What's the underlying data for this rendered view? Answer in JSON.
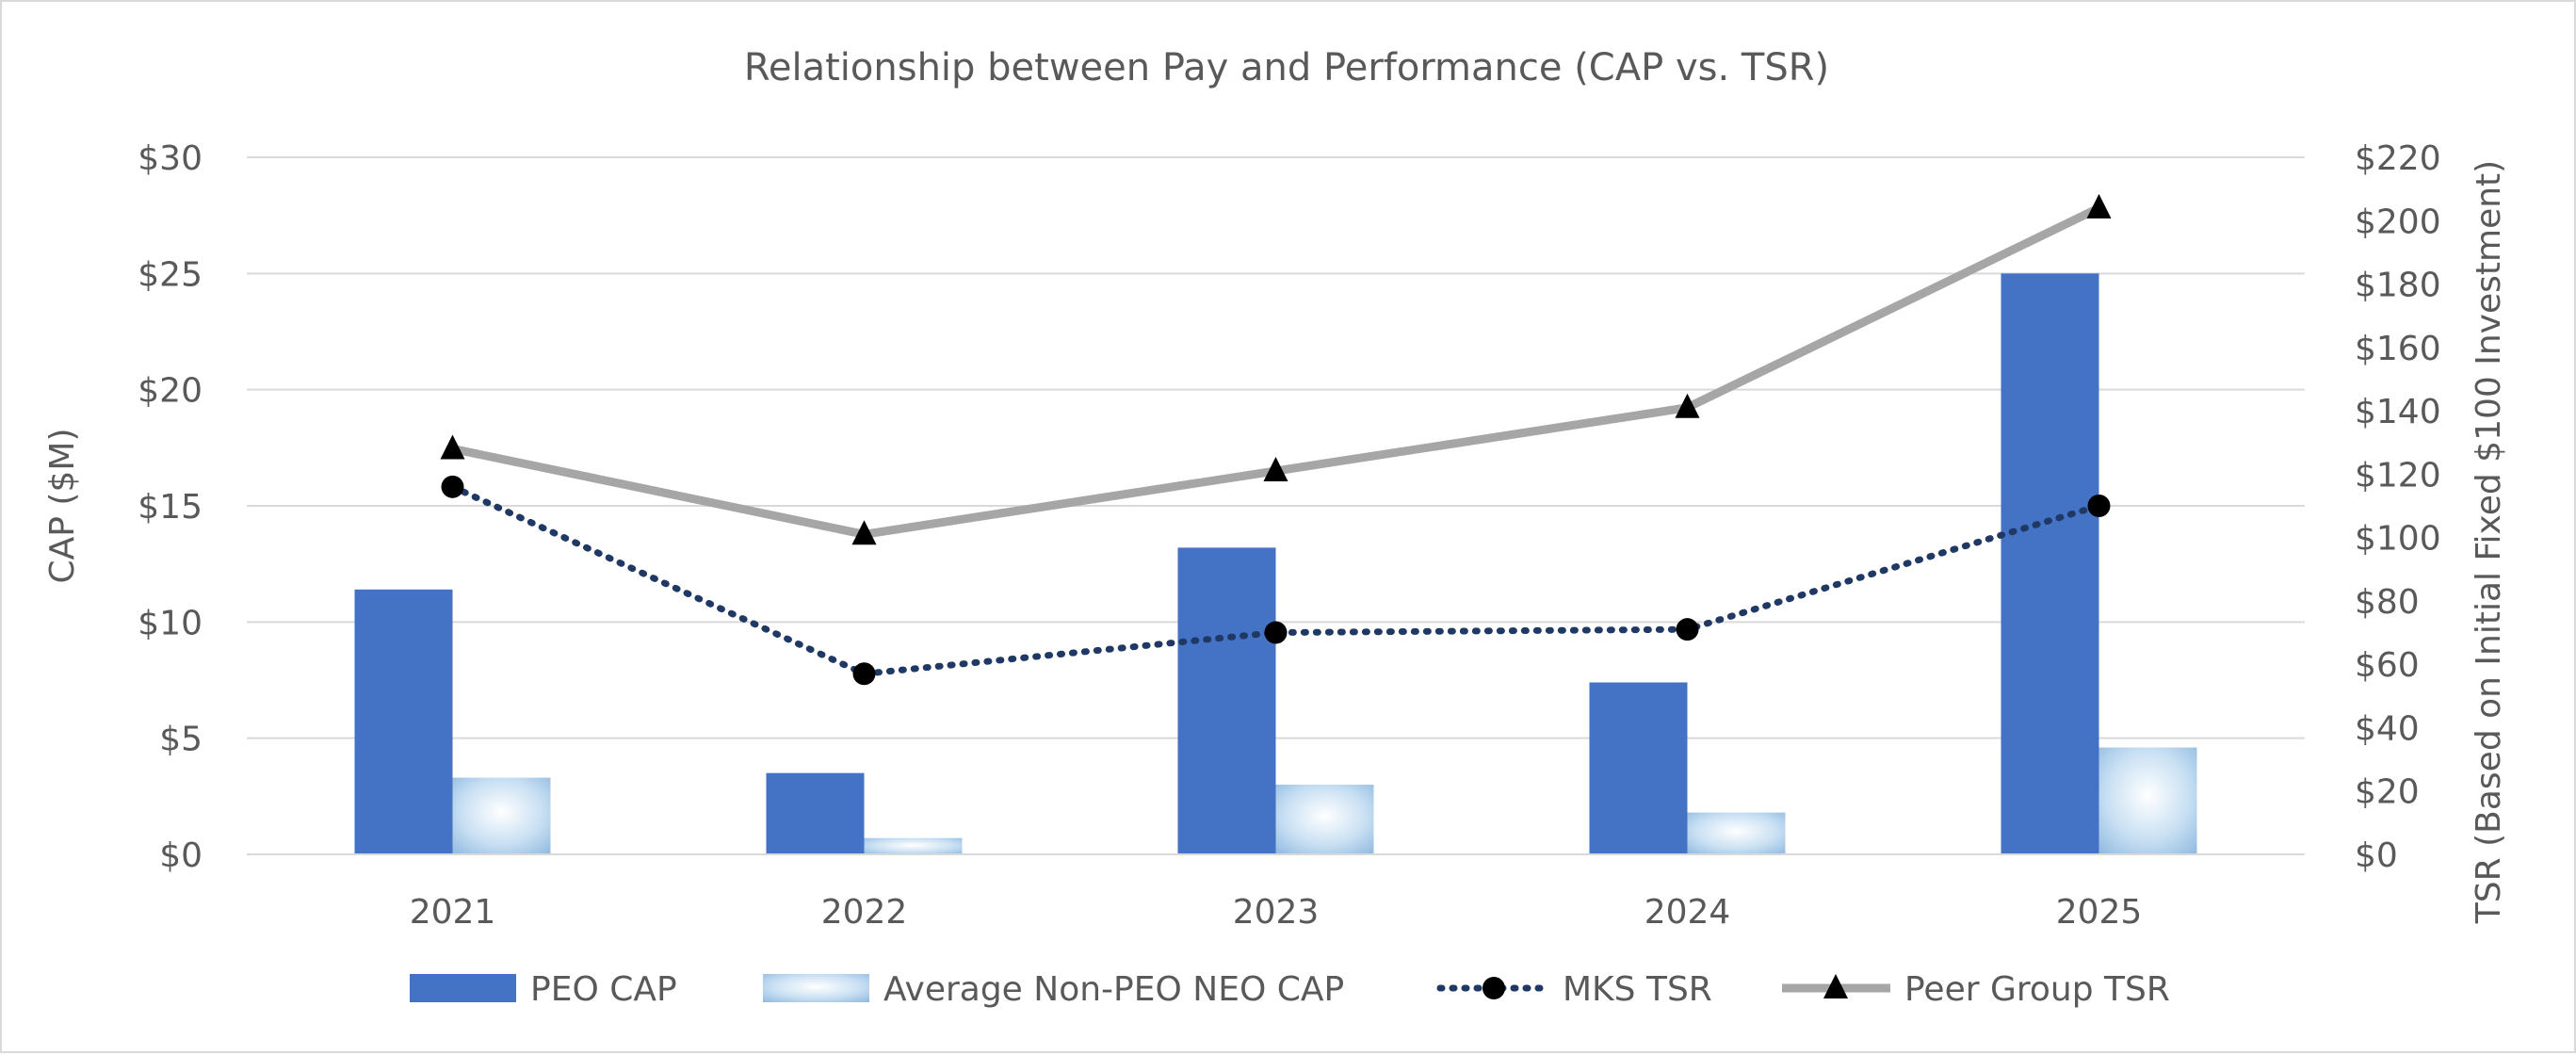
{
  "chart_data": {
    "type": "bar",
    "title": "Relationship between Pay and Performance (CAP vs. TSR)",
    "categories": [
      "2021",
      "2022",
      "2023",
      "2024",
      "2025"
    ],
    "ylabel": "CAP ($M)",
    "y2label": "TSR (Based on Initial Fixed $100 Investment)",
    "ylim": [
      0,
      30
    ],
    "y2lim": [
      0,
      220
    ],
    "yticks": [
      "$0",
      "$5",
      "$10",
      "$15",
      "$20",
      "$25",
      "$30"
    ],
    "y2ticks": [
      "$0",
      "$20",
      "$40",
      "$60",
      "$80",
      "$100",
      "$120",
      "$140",
      "$160",
      "$180",
      "$200",
      "$220"
    ],
    "grid": true,
    "legend_position": "bottom",
    "series": [
      {
        "name": "PEO CAP",
        "kind": "bar",
        "axis": "left",
        "color": "#4472c4",
        "values": [
          11.4,
          3.5,
          13.2,
          7.4,
          25.0
        ]
      },
      {
        "name": "Average Non-PEO NEO CAP",
        "kind": "bar",
        "axis": "left",
        "color": "#9dc3e6",
        "values": [
          3.3,
          0.7,
          3.0,
          1.8,
          4.6
        ]
      },
      {
        "name": "MKS TSR",
        "kind": "line",
        "style": "dotted",
        "marker": "circle",
        "axis": "right",
        "color": "#203864",
        "values": [
          116,
          57,
          70,
          71,
          110
        ]
      },
      {
        "name": "Peer Group TSR",
        "kind": "line",
        "style": "solid",
        "marker": "triangle",
        "axis": "right",
        "color": "#a6a6a6",
        "values": [
          128,
          101,
          121,
          141,
          204
        ]
      }
    ]
  }
}
